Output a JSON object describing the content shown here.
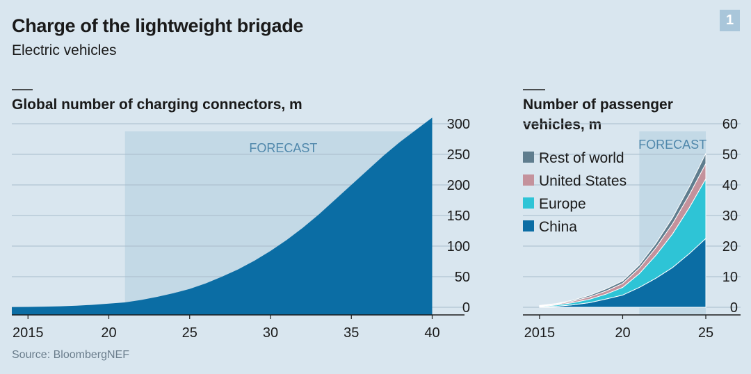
{
  "header": {
    "title": "Charge of the lightweight brigade",
    "subtitle": "Electric vehicles",
    "badge": "1"
  },
  "source": "Source: BloombergNEF",
  "colors": {
    "background": "#d9e6ef",
    "forecast_shade": "#c3d9e6",
    "chargers": "#0b6da4",
    "china": "#0b6da4",
    "europe": "#2ec4d6",
    "united_states": "#c4929c",
    "rest_of_world": "#5f7d8e"
  },
  "chart_data": [
    {
      "type": "area",
      "title": "Global number of charging connectors, m",
      "forecast_label": "FORECAST",
      "forecast_start": 2021,
      "x": [
        2014,
        2015,
        2016,
        2017,
        2018,
        2019,
        2020,
        2021,
        2022,
        2023,
        2024,
        2025,
        2026,
        2027,
        2028,
        2029,
        2030,
        2031,
        2032,
        2033,
        2034,
        2035,
        2036,
        2037,
        2038,
        2039,
        2040
      ],
      "series": [
        {
          "values": [
            0.3,
            0.6,
            1,
            1.6,
            2.5,
            4,
            6,
            8,
            12,
            17,
            23,
            30,
            39,
            50,
            62,
            76,
            92,
            110,
            130,
            152,
            176,
            200,
            224,
            248,
            270,
            290,
            310
          ]
        }
      ],
      "xlim": [
        2014,
        2042
      ],
      "ylim": [
        0,
        300
      ],
      "x_ticks": [
        2015,
        2020,
        2025,
        2030,
        2035,
        2040
      ],
      "x_tick_labels": [
        "2015",
        "20",
        "25",
        "30",
        "35",
        "40"
      ],
      "y_ticks": [
        0,
        50,
        100,
        150,
        200,
        250,
        300
      ],
      "y_tick_labels": [
        "0",
        "50",
        "100",
        "150",
        "200",
        "250",
        "300"
      ],
      "grid": true
    },
    {
      "type": "area",
      "stacked": true,
      "title": [
        "Number of passenger",
        "vehicles, m"
      ],
      "forecast_label": "FORECAST",
      "forecast_start": 2021,
      "x": [
        2015,
        2016,
        2017,
        2018,
        2019,
        2020,
        2021,
        2022,
        2023,
        2024,
        2025
      ],
      "series": [
        {
          "name": "China",
          "values": [
            0.1,
            0.3,
            0.8,
            1.5,
            2.7,
            4.0,
            6.5,
            9.5,
            13,
            17.5,
            22.5
          ]
        },
        {
          "name": "Europe",
          "values": [
            0.2,
            0.4,
            0.7,
            1.1,
            1.6,
            2.5,
            4.5,
            7.5,
            11,
            15,
            19.5
          ]
        },
        {
          "name": "United States",
          "values": [
            0.2,
            0.3,
            0.5,
            0.8,
            1.0,
            1.3,
            1.8,
            2.5,
            3.3,
            4.2,
            5.0
          ]
        },
        {
          "name": "Rest of world",
          "values": [
            0.1,
            0.2,
            0.3,
            0.5,
            0.7,
            0.8,
            1.0,
            1.4,
            2.0,
            2.6,
            3.3
          ]
        }
      ],
      "legend": [
        "Rest of world",
        "United States",
        "Europe",
        "China"
      ],
      "legend_placement": "top-left",
      "xlim": [
        2014,
        2025.9
      ],
      "ylim": [
        0,
        60
      ],
      "x_ticks": [
        2015,
        2020,
        2025
      ],
      "x_tick_labels": [
        "2015",
        "20",
        "25"
      ],
      "y_ticks": [
        0,
        10,
        20,
        30,
        40,
        50,
        60
      ],
      "y_tick_labels": [
        "0",
        "10",
        "20",
        "30",
        "40",
        "50",
        "60"
      ],
      "grid": true
    }
  ]
}
